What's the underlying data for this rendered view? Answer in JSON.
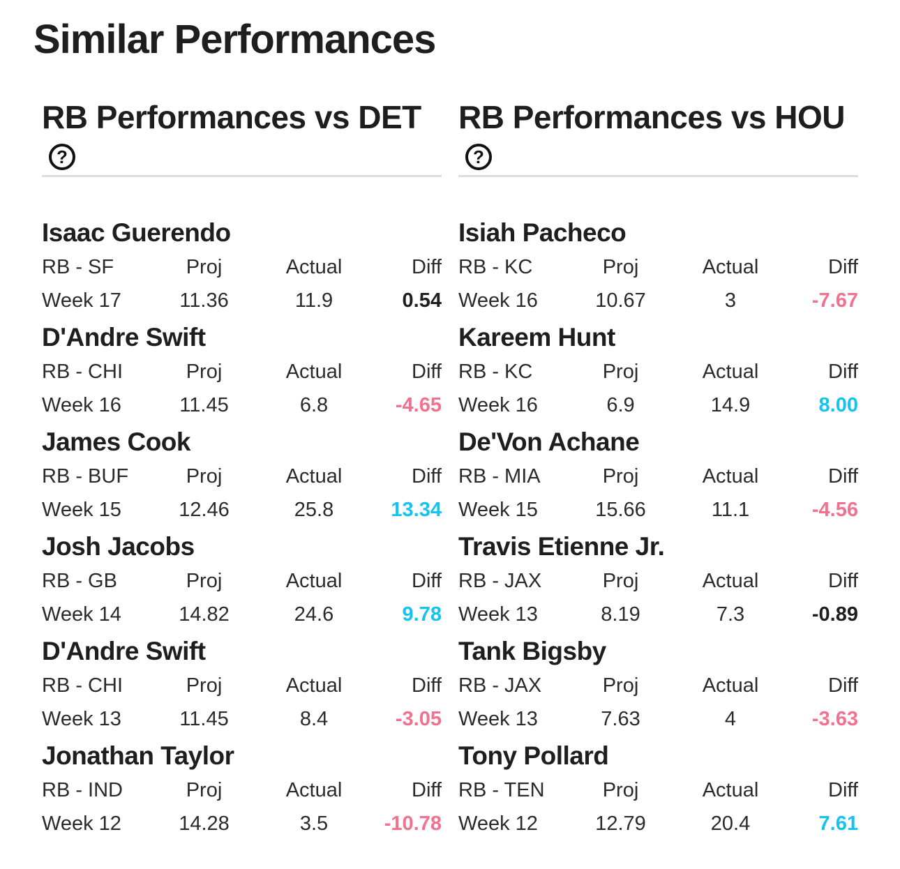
{
  "page": {
    "title": "Similar Performances"
  },
  "colors": {
    "positive": "#14c3f0",
    "negative": "#f2718f",
    "neutral": "#1e1e1e"
  },
  "columns": [
    {
      "title": "RB Performances vs DET",
      "help_icon": "question-circle-icon",
      "headers": {
        "proj": "Proj",
        "actual": "Actual",
        "diff": "Diff"
      },
      "players": [
        {
          "name": "Isaac Guerendo",
          "pos_team": "RB - SF",
          "week": "Week 17",
          "proj": "11.36",
          "actual": "11.9",
          "diff": "0.54",
          "trend": "neutral"
        },
        {
          "name": "D'Andre Swift",
          "pos_team": "RB - CHI",
          "week": "Week 16",
          "proj": "11.45",
          "actual": "6.8",
          "diff": "-4.65",
          "trend": "negative"
        },
        {
          "name": "James Cook",
          "pos_team": "RB - BUF",
          "week": "Week 15",
          "proj": "12.46",
          "actual": "25.8",
          "diff": "13.34",
          "trend": "positive"
        },
        {
          "name": "Josh Jacobs",
          "pos_team": "RB - GB",
          "week": "Week 14",
          "proj": "14.82",
          "actual": "24.6",
          "diff": "9.78",
          "trend": "positive"
        },
        {
          "name": "D'Andre Swift",
          "pos_team": "RB - CHI",
          "week": "Week 13",
          "proj": "11.45",
          "actual": "8.4",
          "diff": "-3.05",
          "trend": "negative"
        },
        {
          "name": "Jonathan Taylor",
          "pos_team": "RB - IND",
          "week": "Week 12",
          "proj": "14.28",
          "actual": "3.5",
          "diff": "-10.78",
          "trend": "negative"
        }
      ]
    },
    {
      "title": "RB Performances vs HOU",
      "help_icon": "question-circle-icon",
      "headers": {
        "proj": "Proj",
        "actual": "Actual",
        "diff": "Diff"
      },
      "players": [
        {
          "name": "Isiah Pacheco",
          "pos_team": "RB - KC",
          "week": "Week 16",
          "proj": "10.67",
          "actual": "3",
          "diff": "-7.67",
          "trend": "negative"
        },
        {
          "name": "Kareem Hunt",
          "pos_team": "RB - KC",
          "week": "Week 16",
          "proj": "6.9",
          "actual": "14.9",
          "diff": "8.00",
          "trend": "positive"
        },
        {
          "name": "De'Von Achane",
          "pos_team": "RB - MIA",
          "week": "Week 15",
          "proj": "15.66",
          "actual": "11.1",
          "diff": "-4.56",
          "trend": "negative"
        },
        {
          "name": "Travis Etienne Jr.",
          "pos_team": "RB - JAX",
          "week": "Week 13",
          "proj": "8.19",
          "actual": "7.3",
          "diff": "-0.89",
          "trend": "neutral"
        },
        {
          "name": "Tank Bigsby",
          "pos_team": "RB - JAX",
          "week": "Week 13",
          "proj": "7.63",
          "actual": "4",
          "diff": "-3.63",
          "trend": "negative"
        },
        {
          "name": "Tony Pollard",
          "pos_team": "RB - TEN",
          "week": "Week 12",
          "proj": "12.79",
          "actual": "20.4",
          "diff": "7.61",
          "trend": "positive"
        }
      ]
    }
  ]
}
